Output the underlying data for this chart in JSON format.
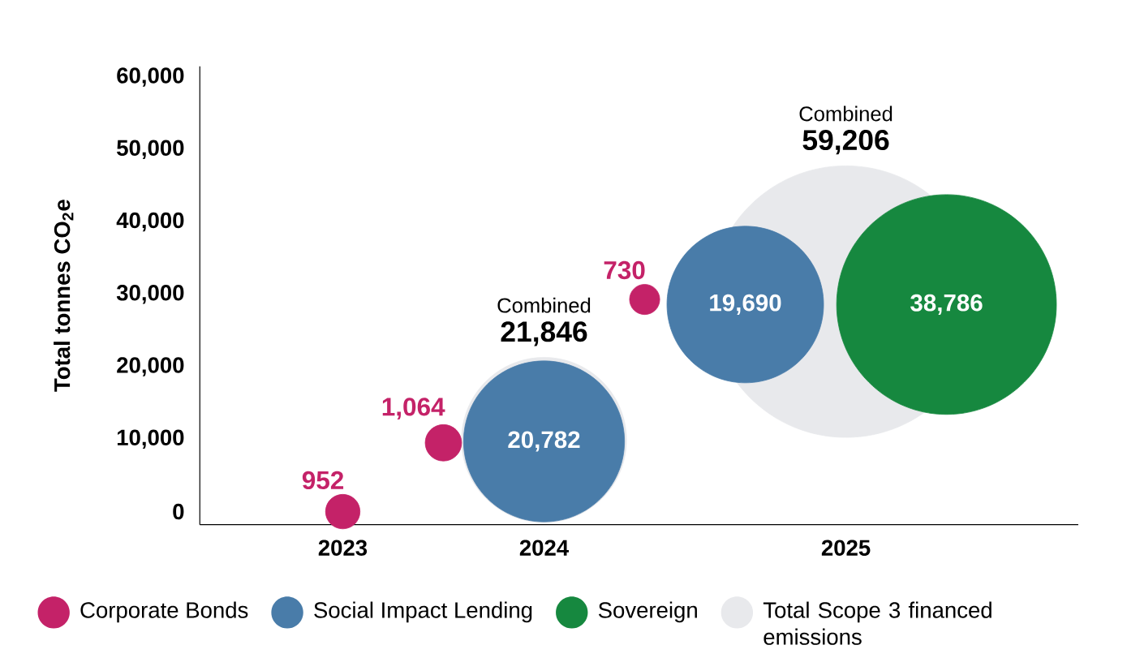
{
  "chart_data": {
    "type": "bubble",
    "ylabel": "Total tonnes CO$_{2}$e",
    "categories": [
      "2023",
      null,
      "2024",
      null,
      null,
      "2025",
      null
    ],
    "ylim": [
      -1800,
      61500
    ],
    "yticks": [
      {
        "value": 0,
        "label": "0"
      },
      {
        "value": 10000,
        "label": "10,000"
      },
      {
        "value": 20000,
        "label": "20,000"
      },
      {
        "value": 30000,
        "label": "30,000"
      },
      {
        "value": 40000,
        "label": "40,000"
      },
      {
        "value": 50000,
        "label": "50,000"
      },
      {
        "value": 60000,
        "label": "60,000"
      }
    ],
    "legend": "bottom",
    "annotations": [
      "Combined",
      "Combined"
    ],
    "series": [
      {
        "name": "Corporate Bonds",
        "color": "#c42268",
        "values": [
          0,
          9500,
          null,
          29300,
          null,
          null,
          null
        ],
        "sizes": [
          952,
          1064,
          null,
          730,
          null,
          null,
          null
        ],
        "value_labels": [
          "952",
          "1,064",
          null,
          "730",
          null,
          null,
          null
        ]
      },
      {
        "name": "Social Impact Lending",
        "color": "#497ca9",
        "values": [
          null,
          null,
          9700,
          null,
          28600,
          null,
          null
        ],
        "sizes": [
          null,
          null,
          20782,
          null,
          19690,
          null,
          null
        ],
        "value_labels": [
          null,
          null,
          "20,782",
          null,
          "19,690",
          null,
          null
        ]
      },
      {
        "name": "Sovereign",
        "color": "#16883f",
        "values": [
          null,
          null,
          null,
          null,
          null,
          null,
          28600
        ],
        "sizes": [
          null,
          null,
          null,
          null,
          null,
          null,
          38786
        ],
        "value_labels": [
          null,
          null,
          null,
          null,
          null,
          null,
          "38,786"
        ]
      },
      {
        "name": "Total Scope 3 financed emissions",
        "color": "#e8e9ec",
        "values": [
          null,
          null,
          9900,
          null,
          null,
          29000,
          null
        ],
        "sizes": [
          null,
          null,
          21846,
          null,
          null,
          59206,
          null
        ],
        "value_labels": [
          null,
          null,
          "21,846",
          null,
          null,
          "59,206",
          null
        ]
      }
    ]
  }
}
